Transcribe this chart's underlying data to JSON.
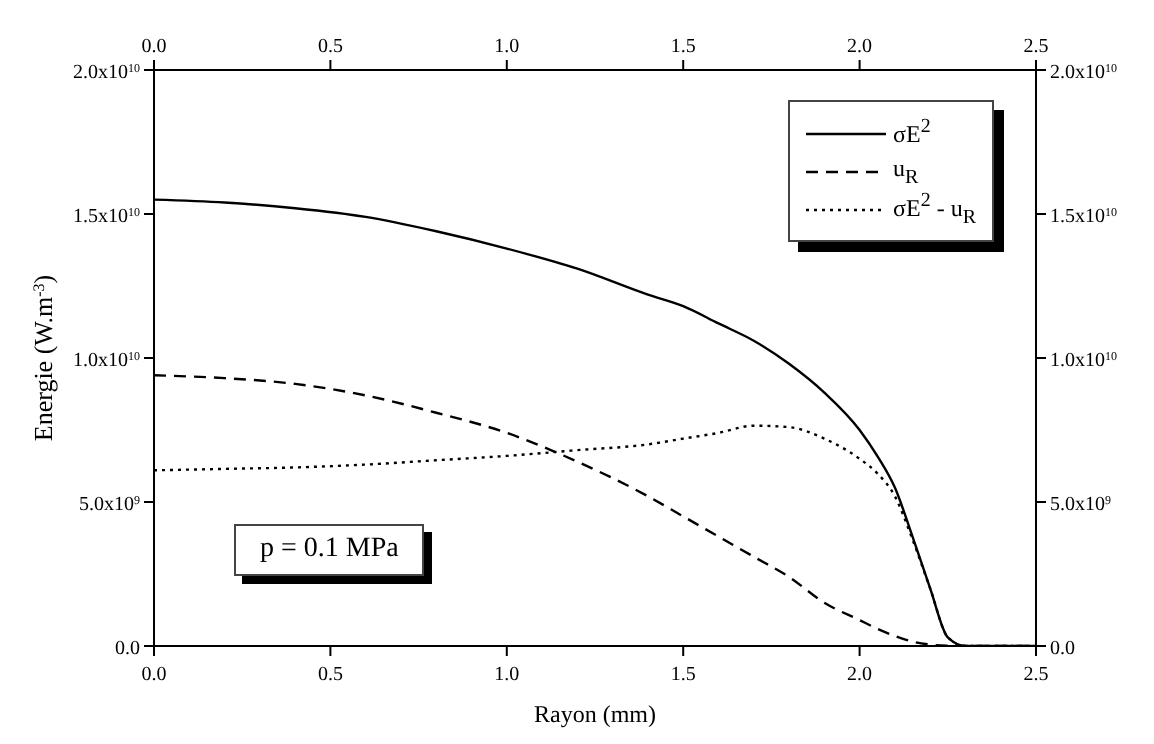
{
  "chart_data": {
    "type": "line",
    "xlabel": "Rayon (mm)",
    "ylabel": "Energie (W.m$^{-3}$)",
    "x": [
      0,
      0.2,
      0.4,
      0.6,
      0.8,
      1.0,
      1.2,
      1.4,
      1.5,
      1.6,
      1.7,
      1.8,
      1.9,
      2.0,
      2.05,
      2.1,
      2.15,
      2.2,
      2.25,
      2.3,
      2.4,
      2.5
    ],
    "series": [
      {
        "name": "σE$^{2}$",
        "color": "#000000",
        "line_style": "solid",
        "values": [
          15500000000.0,
          15400000000.0,
          15200000000.0,
          14900000000.0,
          14400000000.0,
          13800000000.0,
          13100000000.0,
          12200000000.0,
          11800000000.0,
          11200000000.0,
          10600000000.0,
          9800000000.0,
          8800000000.0,
          7500000000.0,
          6600000000.0,
          5500000000.0,
          3800000000.0,
          2000000000.0,
          300000000.0,
          0,
          0,
          0
        ]
      },
      {
        "name": "u$_{R}$",
        "color": "#000000",
        "line_style": "dashed",
        "values": [
          9400000000.0,
          9300000000.0,
          9100000000.0,
          8700000000.0,
          8100000000.0,
          7400000000.0,
          6400000000.0,
          5200000000.0,
          4500000000.0,
          3800000000.0,
          3100000000.0,
          2400000000.0,
          1500000000.0,
          900000000.0,
          600000000.0,
          350000000.0,
          150000000.0,
          50000000.0,
          10000000.0,
          0,
          0,
          0
        ]
      },
      {
        "name": "σE$^{2}$ - u$_{R}$",
        "color": "#000000",
        "line_style": "dotted",
        "values": [
          6100000000.0,
          6150000000.0,
          6200000000.0,
          6300000000.0,
          6450000000.0,
          6600000000.0,
          6800000000.0,
          7000000000.0,
          7200000000.0,
          7400000000.0,
          7650000000.0,
          7600000000.0,
          7200000000.0,
          6500000000.0,
          6000000000.0,
          5200000000.0,
          3700000000.0,
          2000000000.0,
          300000000.0,
          0,
          0,
          0
        ]
      }
    ],
    "xlim": [
      0,
      2.5
    ],
    "xticks": [
      {
        "value": 0,
        "label": "0.0"
      },
      {
        "value": 0.5,
        "label": "0.5"
      },
      {
        "value": 1,
        "label": "1.0"
      },
      {
        "value": 1.5,
        "label": "1.5"
      },
      {
        "value": 2,
        "label": "2.0"
      },
      {
        "value": 2.5,
        "label": "2.5"
      }
    ],
    "x2lim": [
      0,
      2.5
    ],
    "x2ticks": [
      {
        "value": 0,
        "label": "0.0"
      },
      {
        "value": 0.5,
        "label": "0.5"
      },
      {
        "value": 1,
        "label": "1.0"
      },
      {
        "value": 1.5,
        "label": "1.5"
      },
      {
        "value": 2,
        "label": "2.0"
      },
      {
        "value": 2.5,
        "label": "2.5"
      }
    ],
    "ylim": [
      0,
      20000000000.0
    ],
    "yticks": [
      {
        "value": 0,
        "label": "0.0"
      },
      {
        "value": 5000000000.0,
        "label": "5.0x10$^{9}$"
      },
      {
        "value": 10000000000.0,
        "label": "1.0x10$^{10}$"
      },
      {
        "value": 15000000000.0,
        "label": "1.5x10$^{10}$"
      },
      {
        "value": 20000000000.0,
        "label": "2.0x10$^{10}$"
      }
    ],
    "y2lim": [
      0,
      20000000000.0
    ],
    "y2ticks": [
      {
        "value": 0,
        "label": "0.0"
      },
      {
        "value": 5000000000.0,
        "label": "5.0x10$^{9}$"
      },
      {
        "value": 10000000000.0,
        "label": "1.0x10$^{10}$"
      },
      {
        "value": 15000000000.0,
        "label": "1.5x10$^{10}$"
      },
      {
        "value": 20000000000.0,
        "label": "2.0x10$^{10}$"
      }
    ],
    "annotations": [
      "p = 0.1 MPa"
    ],
    "legend": "top right",
    "grid": false,
    "marker": "none"
  }
}
